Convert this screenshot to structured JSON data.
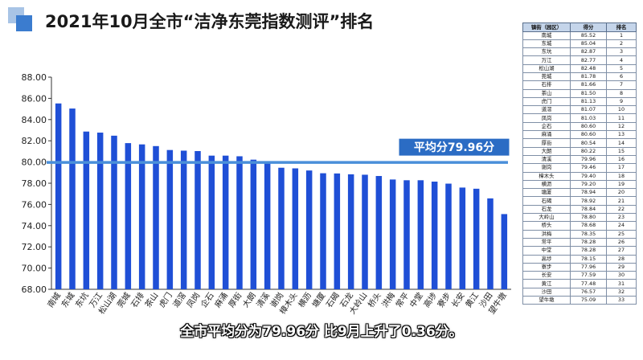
{
  "title": "2021年10月全市“洁净东莞指数测评”排名",
  "caption": "全市平均分为79.96分  比9月上升了0.36分。",
  "average_label": "平均分79.96分",
  "table": {
    "headers": [
      "镇街（园区）",
      "得分",
      "排名"
    ],
    "rows": [
      [
        "南城",
        "85.52",
        "1"
      ],
      [
        "东城",
        "85.04",
        "2"
      ],
      [
        "东坑",
        "82.87",
        "3"
      ],
      [
        "万江",
        "82.77",
        "4"
      ],
      [
        "松山湖",
        "82.48",
        "5"
      ],
      [
        "莞城",
        "81.78",
        "6"
      ],
      [
        "石排",
        "81.66",
        "7"
      ],
      [
        "茶山",
        "81.50",
        "8"
      ],
      [
        "虎门",
        "81.13",
        "9"
      ],
      [
        "道滘",
        "81.07",
        "10"
      ],
      [
        "凤岗",
        "81.03",
        "11"
      ],
      [
        "企石",
        "80.60",
        "12"
      ],
      [
        "麻涌",
        "80.60",
        "13"
      ],
      [
        "厚街",
        "80.54",
        "14"
      ],
      [
        "大朗",
        "80.22",
        "15"
      ],
      [
        "清溪",
        "79.96",
        "16"
      ],
      [
        "谢岗",
        "79.46",
        "17"
      ],
      [
        "樟木头",
        "79.40",
        "18"
      ],
      [
        "横沥",
        "79.20",
        "19"
      ],
      [
        "塘厦",
        "78.94",
        "20"
      ],
      [
        "石碣",
        "78.92",
        "21"
      ],
      [
        "石龙",
        "78.84",
        "22"
      ],
      [
        "大岭山",
        "78.80",
        "23"
      ],
      [
        "桥头",
        "78.68",
        "24"
      ],
      [
        "洪梅",
        "78.35",
        "25"
      ],
      [
        "常平",
        "78.28",
        "26"
      ],
      [
        "中堂",
        "78.28",
        "27"
      ],
      [
        "高埗",
        "78.15",
        "28"
      ],
      [
        "寮步",
        "77.96",
        "29"
      ],
      [
        "长安",
        "77.59",
        "30"
      ],
      [
        "黄江",
        "77.48",
        "31"
      ],
      [
        "沙田",
        "76.57",
        "32"
      ],
      [
        "望牛墩",
        "75.09",
        "33"
      ]
    ]
  },
  "chart_data": {
    "type": "bar",
    "title": "",
    "xlabel": "",
    "ylabel": "",
    "ylim": [
      68,
      88
    ],
    "yticks": [
      "68.00",
      "70.00",
      "72.00",
      "74.00",
      "76.00",
      "78.00",
      "80.00",
      "82.00",
      "84.00",
      "86.00",
      "88.00"
    ],
    "grid": false,
    "categories": [
      "南城",
      "东城",
      "东坑",
      "万江",
      "松山湖",
      "莞城",
      "石排",
      "茶山",
      "虎门",
      "道滘",
      "凤岗",
      "企石",
      "麻涌",
      "厚街",
      "大朗",
      "清溪",
      "谢岗",
      "樟木头",
      "横沥",
      "塘厦",
      "石碣",
      "石龙",
      "大岭山",
      "桥头",
      "洪梅",
      "常平",
      "中堂",
      "高埗",
      "寮步",
      "长安",
      "黄江",
      "沙田",
      "望牛墩"
    ],
    "values": [
      85.52,
      85.04,
      82.87,
      82.77,
      82.48,
      81.78,
      81.66,
      81.5,
      81.13,
      81.07,
      81.03,
      80.6,
      80.6,
      80.54,
      80.22,
      79.96,
      79.46,
      79.4,
      79.2,
      78.94,
      78.92,
      78.84,
      78.8,
      78.68,
      78.35,
      78.28,
      78.28,
      78.15,
      77.96,
      77.59,
      77.48,
      76.57,
      75.09
    ],
    "average": 79.96,
    "colors": {
      "bar": "#1f4fd6",
      "average_line": "#4a8fd9",
      "label_bg": "#2b6cc4"
    }
  }
}
